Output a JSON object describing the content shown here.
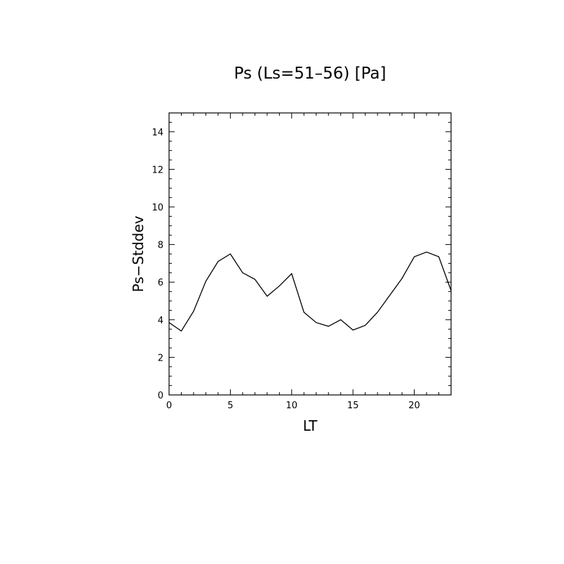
{
  "chart_data": {
    "type": "line",
    "title": "Ps (Ls=51–56) [Pa]",
    "xlabel": "LT",
    "ylabel": "Ps−Stddev",
    "xlim": [
      0,
      23
    ],
    "ylim": [
      0,
      15
    ],
    "x_ticks": [
      0,
      5,
      10,
      15,
      20
    ],
    "y_ticks": [
      0,
      2,
      4,
      6,
      8,
      10,
      12,
      14
    ],
    "x_minor_step": 1,
    "y_minor_step": 0.5,
    "grid": false,
    "legend": "none",
    "series": [
      {
        "x": [
          0,
          1,
          2,
          3,
          4,
          5,
          6,
          7,
          8,
          9,
          10,
          11,
          12,
          13,
          14,
          15,
          16,
          17,
          18,
          19,
          20,
          21,
          22,
          23
        ],
        "values": [
          3.85,
          3.4,
          4.45,
          6.05,
          7.1,
          7.5,
          6.5,
          6.15,
          5.25,
          5.8,
          6.45,
          4.4,
          3.85,
          3.65,
          4.0,
          3.45,
          3.7,
          4.4,
          5.3,
          6.2,
          7.35,
          7.6,
          7.35,
          5.55
        ],
        "color": "#000000"
      }
    ]
  }
}
